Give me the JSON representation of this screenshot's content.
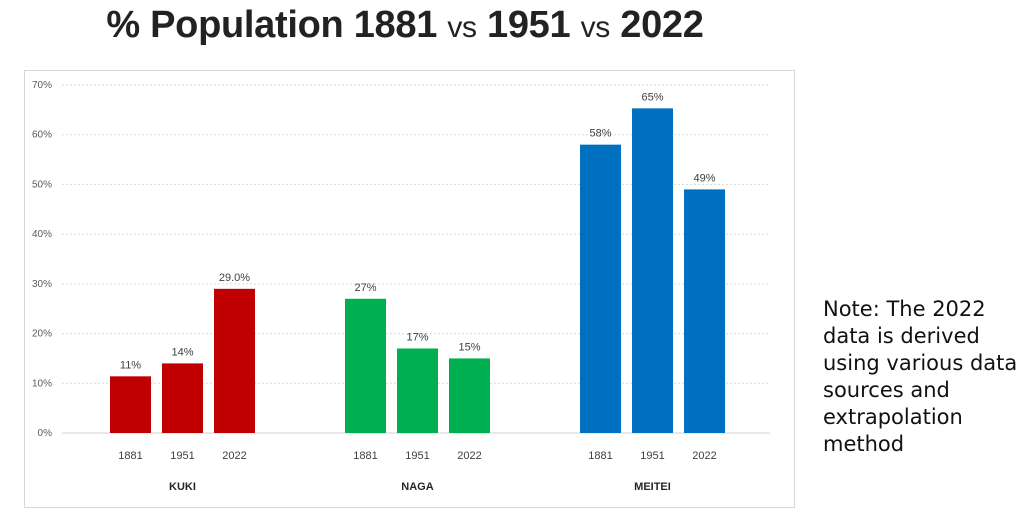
{
  "title": {
    "prefix": "% Population",
    "y1": "1881",
    "vs1": "vs",
    "y2": "1951",
    "vs2": "vs",
    "y3": "2022"
  },
  "note": "Note: The 2022\ndata is derived\nusing various data\nsources and\nextrapolation\nmethod",
  "chart_data": {
    "type": "bar",
    "title": "% Population 1881 vs 1951 vs 2022",
    "xlabel": "",
    "ylabel": "",
    "ylim": [
      0,
      70
    ],
    "yticks": [
      "0%",
      "10%",
      "20%",
      "30%",
      "40%",
      "50%",
      "60%",
      "70%"
    ],
    "grid": true,
    "groups": [
      {
        "name": "KUKI",
        "color": "#c00000",
        "categories": [
          "1881",
          "1951",
          "2022"
        ],
        "values": [
          11.4,
          14,
          29
        ],
        "labels": [
          "11%",
          "14%",
          "29.0%"
        ]
      },
      {
        "name": "NAGA",
        "color": "#00b050",
        "categories": [
          "1881",
          "1951",
          "2022"
        ],
        "values": [
          27,
          17,
          15
        ],
        "labels": [
          "27%",
          "17%",
          "15%"
        ]
      },
      {
        "name": "MEITEI",
        "color": "#0070c0",
        "categories": [
          "1881",
          "1951",
          "2022"
        ],
        "values": [
          58,
          65.3,
          49
        ],
        "labels": [
          "58%",
          "65%",
          "49%"
        ]
      }
    ]
  }
}
